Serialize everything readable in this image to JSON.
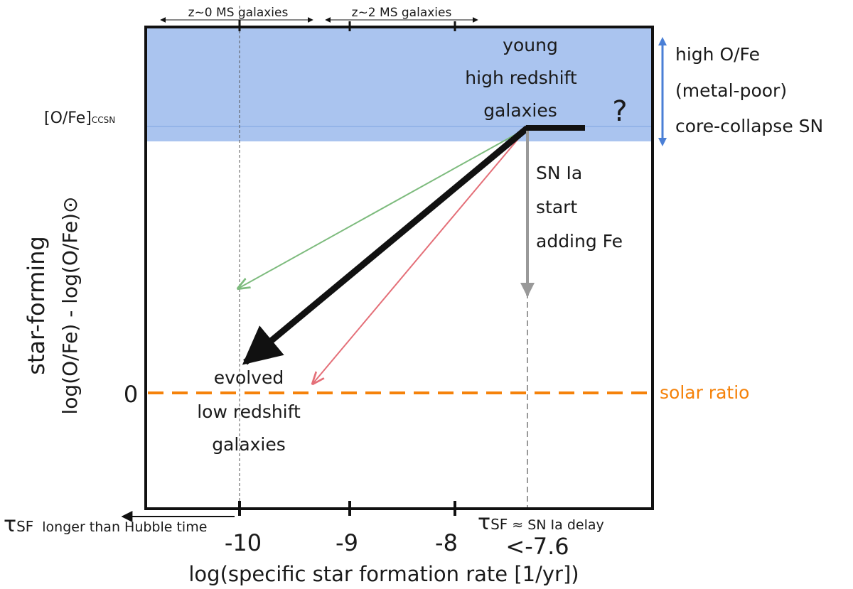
{
  "figure": {
    "ylabel_top": "star-forming",
    "ylabel_bottom": "log(O/Fe) - log(O/Fe)⊙",
    "xlabel": "log(specific star formation rate [1/yr])",
    "y_zero_tick": "0",
    "ccsn_label_main": "[O/Fe]",
    "ccsn_label_sub": "CCSN",
    "x_ticks": [
      "-10",
      "-9",
      "-8",
      "<-7.6"
    ],
    "top_ranges": {
      "z0": "z~0 MS galaxies",
      "z2": "z~2 MS galaxies"
    },
    "region": {
      "line1": "high O/Fe",
      "line2": "(metal-poor)",
      "line3": "core-collapse SN",
      "color": "#aac4ef",
      "arrow_color": "#4a7fd6"
    },
    "young": [
      "young",
      "high redshift",
      "galaxies"
    ],
    "question": "?",
    "sn_ia": [
      "SN Ia",
      "start",
      "adding Fe"
    ],
    "evolved": [
      "evolved",
      "low redshift",
      "galaxies"
    ],
    "solar": {
      "label": "solar ratio",
      "color": "#f5820a"
    },
    "tau_left": {
      "symbol": "τ",
      "sub": "SF",
      "text": "longer than Hubble time"
    },
    "tau_right": {
      "symbol": "τ",
      "sub": "SF",
      "text": "≈ SN Ia delay"
    },
    "colors": {
      "green_arrow": "#7dbb7d",
      "red_arrow": "#e46f78",
      "grey_arrow": "#999999"
    }
  }
}
